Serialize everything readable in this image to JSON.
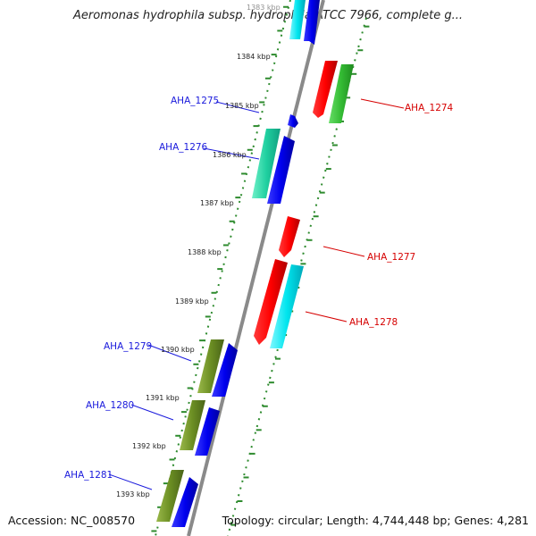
{
  "title": "Aeromonas hydrophila subsp. hydrophila ATCC 7966, complete g...",
  "footer": {
    "accession": "Accession: NC_008570",
    "topology": "Topology: circular; Length: 4,744,448 bp; Genes: 4,281"
  },
  "ticks": [
    "1383 kbp",
    "1384 kbp",
    "1385 kbp",
    "1386 kbp",
    "1387 kbp",
    "1388 kbp",
    "1389 kbp",
    "1390 kbp",
    "1391 kbp",
    "1392 kbp",
    "1393 kbp"
  ],
  "genes": [
    {
      "label": "AHA_1274",
      "color": "#d60000",
      "side": "right"
    },
    {
      "label": "AHA_1275",
      "color": "#1a1adc",
      "side": "left"
    },
    {
      "label": "AHA_1276",
      "color": "#1a1adc",
      "side": "left"
    },
    {
      "label": "AHA_1277",
      "color": "#d60000",
      "side": "right"
    },
    {
      "label": "AHA_1278",
      "color": "#d60000",
      "side": "right"
    },
    {
      "label": "AHA_1279",
      "color": "#1a1adc",
      "side": "left"
    },
    {
      "label": "AHA_1280",
      "color": "#1a1adc",
      "side": "left"
    },
    {
      "label": "AHA_1281",
      "color": "#1a1adc",
      "side": "left"
    }
  ],
  "colors": {
    "backbone": "#8a8a8a",
    "dotted_track": "#2e8b2e",
    "red": "#ff0000",
    "blue": "#0000ee",
    "cyan": "#00e5ee",
    "green": "#33bb33",
    "olive": "#6b8e23",
    "teal": "#20d0a0"
  }
}
